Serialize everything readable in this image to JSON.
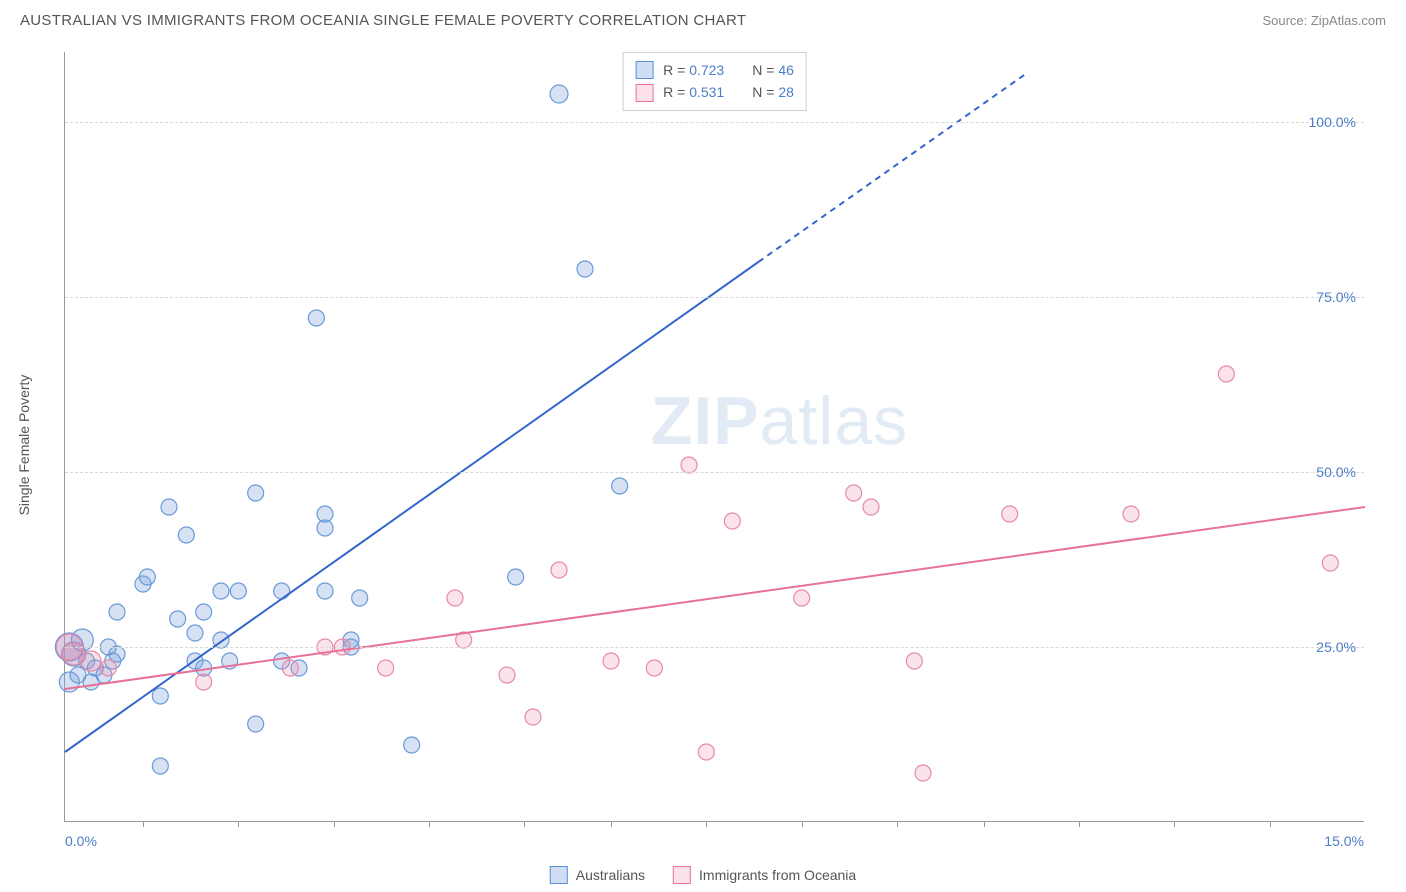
{
  "title": "AUSTRALIAN VS IMMIGRANTS FROM OCEANIA SINGLE FEMALE POVERTY CORRELATION CHART",
  "source_prefix": "Source: ",
  "source_name": "ZipAtlas.com",
  "ylabel": "Single Female Poverty",
  "watermark_a": "ZIP",
  "watermark_b": "atlas",
  "chart": {
    "type": "scatter",
    "xlim": [
      0,
      15
    ],
    "ylim": [
      0,
      110
    ],
    "xtick_positions": [
      0.9,
      2.0,
      3.1,
      4.2,
      5.3,
      6.3,
      7.4,
      8.5,
      9.6,
      10.6,
      11.7,
      12.8,
      13.9
    ],
    "x_left_label": "0.0%",
    "x_right_label": "15.0%",
    "ygrid": [
      {
        "v": 25,
        "label": "25.0%"
      },
      {
        "v": 50,
        "label": "50.0%"
      },
      {
        "v": 75,
        "label": "75.0%"
      },
      {
        "v": 100,
        "label": "100.0%"
      }
    ],
    "background_color": "#ffffff",
    "grid_color": "#d8d8d8",
    "axis_color": "#999999",
    "label_color_numeric": "#4a7ec9",
    "label_color_text": "#555555",
    "series": {
      "australians": {
        "label": "Australians",
        "marker_fill": "rgba(120,160,220,0.30)",
        "marker_stroke": "#6a9ad8",
        "marker_radius": 8,
        "line_color": "#3366cc",
        "line_width": 2,
        "R": "0.723",
        "N": "46",
        "trend": {
          "x1": 0,
          "y1": 10,
          "x2_solid": 8.0,
          "y2_solid": 80,
          "x2_dash": 11.1,
          "y2_dash": 107
        },
        "points": [
          {
            "x": 0.05,
            "y": 20,
            "r": 10
          },
          {
            "x": 0.05,
            "y": 25,
            "r": 14
          },
          {
            "x": 0.1,
            "y": 24,
            "r": 12
          },
          {
            "x": 0.15,
            "y": 21
          },
          {
            "x": 0.2,
            "y": 26,
            "r": 11
          },
          {
            "x": 0.25,
            "y": 23
          },
          {
            "x": 0.3,
            "y": 20
          },
          {
            "x": 0.35,
            "y": 22
          },
          {
            "x": 0.45,
            "y": 21
          },
          {
            "x": 0.5,
            "y": 25
          },
          {
            "x": 0.55,
            "y": 23
          },
          {
            "x": 0.6,
            "y": 24
          },
          {
            "x": 0.6,
            "y": 30
          },
          {
            "x": 0.9,
            "y": 34
          },
          {
            "x": 0.95,
            "y": 35
          },
          {
            "x": 1.1,
            "y": 18
          },
          {
            "x": 1.1,
            "y": 8
          },
          {
            "x": 1.3,
            "y": 29
          },
          {
            "x": 1.2,
            "y": 45
          },
          {
            "x": 1.4,
            "y": 41
          },
          {
            "x": 1.5,
            "y": 23
          },
          {
            "x": 1.5,
            "y": 27
          },
          {
            "x": 1.6,
            "y": 22
          },
          {
            "x": 1.6,
            "y": 30
          },
          {
            "x": 1.8,
            "y": 26
          },
          {
            "x": 1.8,
            "y": 33
          },
          {
            "x": 1.9,
            "y": 23
          },
          {
            "x": 2.0,
            "y": 33
          },
          {
            "x": 2.2,
            "y": 14
          },
          {
            "x": 2.2,
            "y": 47
          },
          {
            "x": 2.5,
            "y": 23
          },
          {
            "x": 2.5,
            "y": 33
          },
          {
            "x": 2.7,
            "y": 22
          },
          {
            "x": 2.9,
            "y": 72
          },
          {
            "x": 3.0,
            "y": 42
          },
          {
            "x": 3.0,
            "y": 33
          },
          {
            "x": 3.0,
            "y": 44
          },
          {
            "x": 3.3,
            "y": 25
          },
          {
            "x": 3.3,
            "y": 26
          },
          {
            "x": 3.4,
            "y": 32
          },
          {
            "x": 4.0,
            "y": 11
          },
          {
            "x": 5.2,
            "y": 35
          },
          {
            "x": 5.7,
            "y": 104,
            "r": 9
          },
          {
            "x": 6.0,
            "y": 79
          },
          {
            "x": 6.4,
            "y": 48
          },
          {
            "x": 6.85,
            "y": 106,
            "r": 9
          }
        ]
      },
      "oceania": {
        "label": "Immigrants from Oceania",
        "marker_fill": "rgba(240,140,170,0.24)",
        "marker_stroke": "#e88aa8",
        "marker_radius": 8,
        "line_color": "#e8719a",
        "line_width": 2,
        "R": "0.531",
        "N": "28",
        "trend": {
          "x1": 0,
          "y1": 19,
          "x2_solid": 15,
          "y2_solid": 45,
          "x2_dash": 15,
          "y2_dash": 45
        },
        "points": [
          {
            "x": 0.05,
            "y": 25,
            "r": 13
          },
          {
            "x": 0.1,
            "y": 24,
            "r": 11
          },
          {
            "x": 0.3,
            "y": 23,
            "r": 10
          },
          {
            "x": 0.5,
            "y": 22
          },
          {
            "x": 1.6,
            "y": 20
          },
          {
            "x": 2.6,
            "y": 22
          },
          {
            "x": 3.0,
            "y": 25
          },
          {
            "x": 3.2,
            "y": 25
          },
          {
            "x": 3.7,
            "y": 22
          },
          {
            "x": 4.5,
            "y": 32
          },
          {
            "x": 4.6,
            "y": 26
          },
          {
            "x": 5.1,
            "y": 21
          },
          {
            "x": 5.4,
            "y": 15
          },
          {
            "x": 5.7,
            "y": 36
          },
          {
            "x": 6.3,
            "y": 23
          },
          {
            "x": 6.8,
            "y": 22
          },
          {
            "x": 7.2,
            "y": 51
          },
          {
            "x": 7.4,
            "y": 10
          },
          {
            "x": 7.7,
            "y": 43
          },
          {
            "x": 8.5,
            "y": 32
          },
          {
            "x": 9.1,
            "y": 47
          },
          {
            "x": 9.3,
            "y": 45
          },
          {
            "x": 9.8,
            "y": 23
          },
          {
            "x": 9.9,
            "y": 7
          },
          {
            "x": 10.9,
            "y": 44
          },
          {
            "x": 12.3,
            "y": 44
          },
          {
            "x": 13.4,
            "y": 64
          },
          {
            "x": 14.6,
            "y": 37
          }
        ]
      }
    }
  }
}
